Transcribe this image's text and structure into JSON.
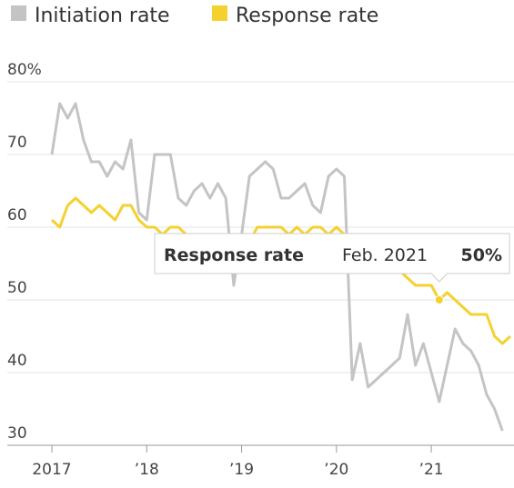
{
  "chart_data": {
    "type": "line",
    "x": [
      "2017-01",
      "2017-02",
      "2017-03",
      "2017-04",
      "2017-05",
      "2017-06",
      "2017-07",
      "2017-08",
      "2017-09",
      "2017-10",
      "2017-11",
      "2017-12",
      "2018-01",
      "2018-02",
      "2018-03",
      "2018-04",
      "2018-05",
      "2018-06",
      "2018-07",
      "2018-08",
      "2018-09",
      "2018-10",
      "2018-11",
      "2018-12",
      "2019-01",
      "2019-02",
      "2019-03",
      "2019-04",
      "2019-05",
      "2019-06",
      "2019-07",
      "2019-08",
      "2019-09",
      "2019-10",
      "2019-11",
      "2019-12",
      "2020-01",
      "2020-02",
      "2020-03",
      "2020-04",
      "2020-05",
      "2020-06",
      "2020-07",
      "2020-08",
      "2020-09",
      "2020-10",
      "2020-11",
      "2020-12",
      "2021-01",
      "2021-02",
      "2021-03",
      "2021-04",
      "2021-05",
      "2021-06",
      "2021-07",
      "2021-08",
      "2021-09",
      "2021-10",
      "2021-11"
    ],
    "series": [
      {
        "name": "Initiation rate",
        "color": "#c4c4c4",
        "values": [
          70,
          77,
          75,
          77,
          72,
          69,
          69,
          67,
          69,
          68,
          72,
          62,
          61,
          70,
          70,
          70,
          64,
          63,
          65,
          66,
          64,
          66,
          64,
          52,
          59,
          67,
          68,
          69,
          68,
          64,
          64,
          65,
          66,
          63,
          62,
          67,
          68,
          67,
          39,
          44,
          38,
          39,
          40,
          41,
          42,
          48,
          41,
          44,
          40,
          36,
          41,
          46,
          44,
          43,
          41,
          37,
          35,
          32,
          null
        ]
      },
      {
        "name": "Response rate",
        "color": "#f5d130",
        "values": [
          61,
          60,
          63,
          64,
          63,
          62,
          63,
          62,
          61,
          63,
          63,
          61,
          60,
          60,
          59,
          60,
          60,
          59,
          59,
          59,
          58,
          58,
          58,
          58,
          59,
          58,
          60,
          60,
          60,
          60,
          59,
          60,
          59,
          60,
          60,
          59,
          60,
          59,
          59,
          58,
          57,
          57,
          56,
          55,
          54,
          53,
          52,
          52,
          52,
          50,
          51,
          50,
          49,
          48,
          48,
          48,
          45,
          44,
          45
        ]
      }
    ],
    "xlim": [
      "2017-01",
      "2021-11"
    ],
    "xticks": [
      {
        "value": "2017-01",
        "label": "2017"
      },
      {
        "value": "2018-01",
        "label": "’18"
      },
      {
        "value": "2019-01",
        "label": "’19"
      },
      {
        "value": "2020-01",
        "label": "’20"
      },
      {
        "value": "2021-01",
        "label": "’21"
      }
    ],
    "ylim": [
      30,
      80
    ],
    "yticks": [
      30,
      40,
      50,
      60,
      70,
      {
        "value": 80,
        "label": "80%"
      }
    ],
    "grid": true,
    "tooltip": {
      "series": 1,
      "label": "Feb. 2021",
      "value_label": "50%"
    }
  }
}
